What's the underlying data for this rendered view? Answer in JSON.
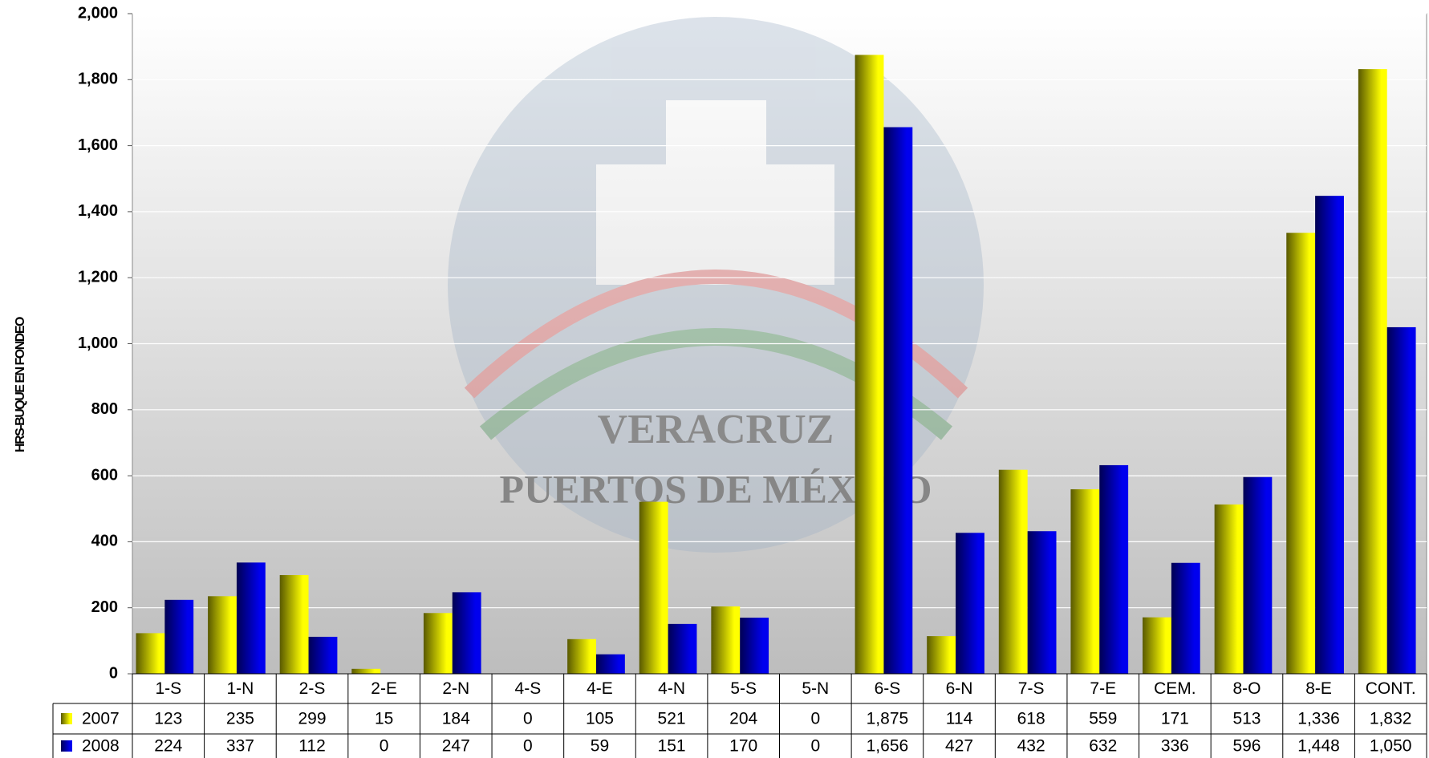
{
  "chart_data": {
    "type": "bar",
    "y_label": "HRS-BUQUE EN FONDEO",
    "watermark": [
      "VERACRUZ",
      "PUERTOS DE MÉXICO"
    ],
    "categories": [
      "1-S",
      "1-N",
      "2-S",
      "2-E",
      "2-N",
      "4-S",
      "4-E",
      "4-N",
      "5-S",
      "5-N",
      "6-S",
      "6-N",
      "7-S",
      "7-E",
      "CEM.",
      "8-O",
      "8-E",
      "CONT."
    ],
    "series": [
      {
        "name": "2007",
        "color": "#ffff00",
        "values": [
          123,
          235,
          299,
          15,
          184,
          0,
          105,
          521,
          204,
          0,
          1875,
          114,
          618,
          559,
          171,
          513,
          1336,
          1832
        ],
        "value_labels": [
          "123",
          "235",
          "299",
          "15",
          "184",
          "0",
          "105",
          "521",
          "204",
          "0",
          "1,875",
          "114",
          "618",
          "559",
          "171",
          "513",
          "1,336",
          "1,832"
        ]
      },
      {
        "name": "2008",
        "color": "#0000ee",
        "values": [
          224,
          337,
          112,
          0,
          247,
          0,
          59,
          151,
          170,
          0,
          1656,
          427,
          432,
          632,
          336,
          596,
          1448,
          1050
        ],
        "value_labels": [
          "224",
          "337",
          "112",
          "0",
          "247",
          "0",
          "59",
          "151",
          "170",
          "0",
          "1,656",
          "427",
          "432",
          "632",
          "336",
          "596",
          "1,448",
          "1,050"
        ]
      }
    ],
    "ylim": [
      0,
      2000
    ],
    "yticks": [
      0,
      200,
      400,
      600,
      800,
      {
        "value": 1000,
        "label": "1,000"
      },
      {
        "value": 1200,
        "label": "1,200"
      },
      {
        "value": 1400,
        "label": "1,400"
      },
      {
        "value": 1600,
        "label": "1,600"
      },
      {
        "value": 1800,
        "label": "1,800"
      },
      {
        "value": 2000,
        "label": "2,000"
      }
    ],
    "grid": true,
    "data_table": true
  }
}
